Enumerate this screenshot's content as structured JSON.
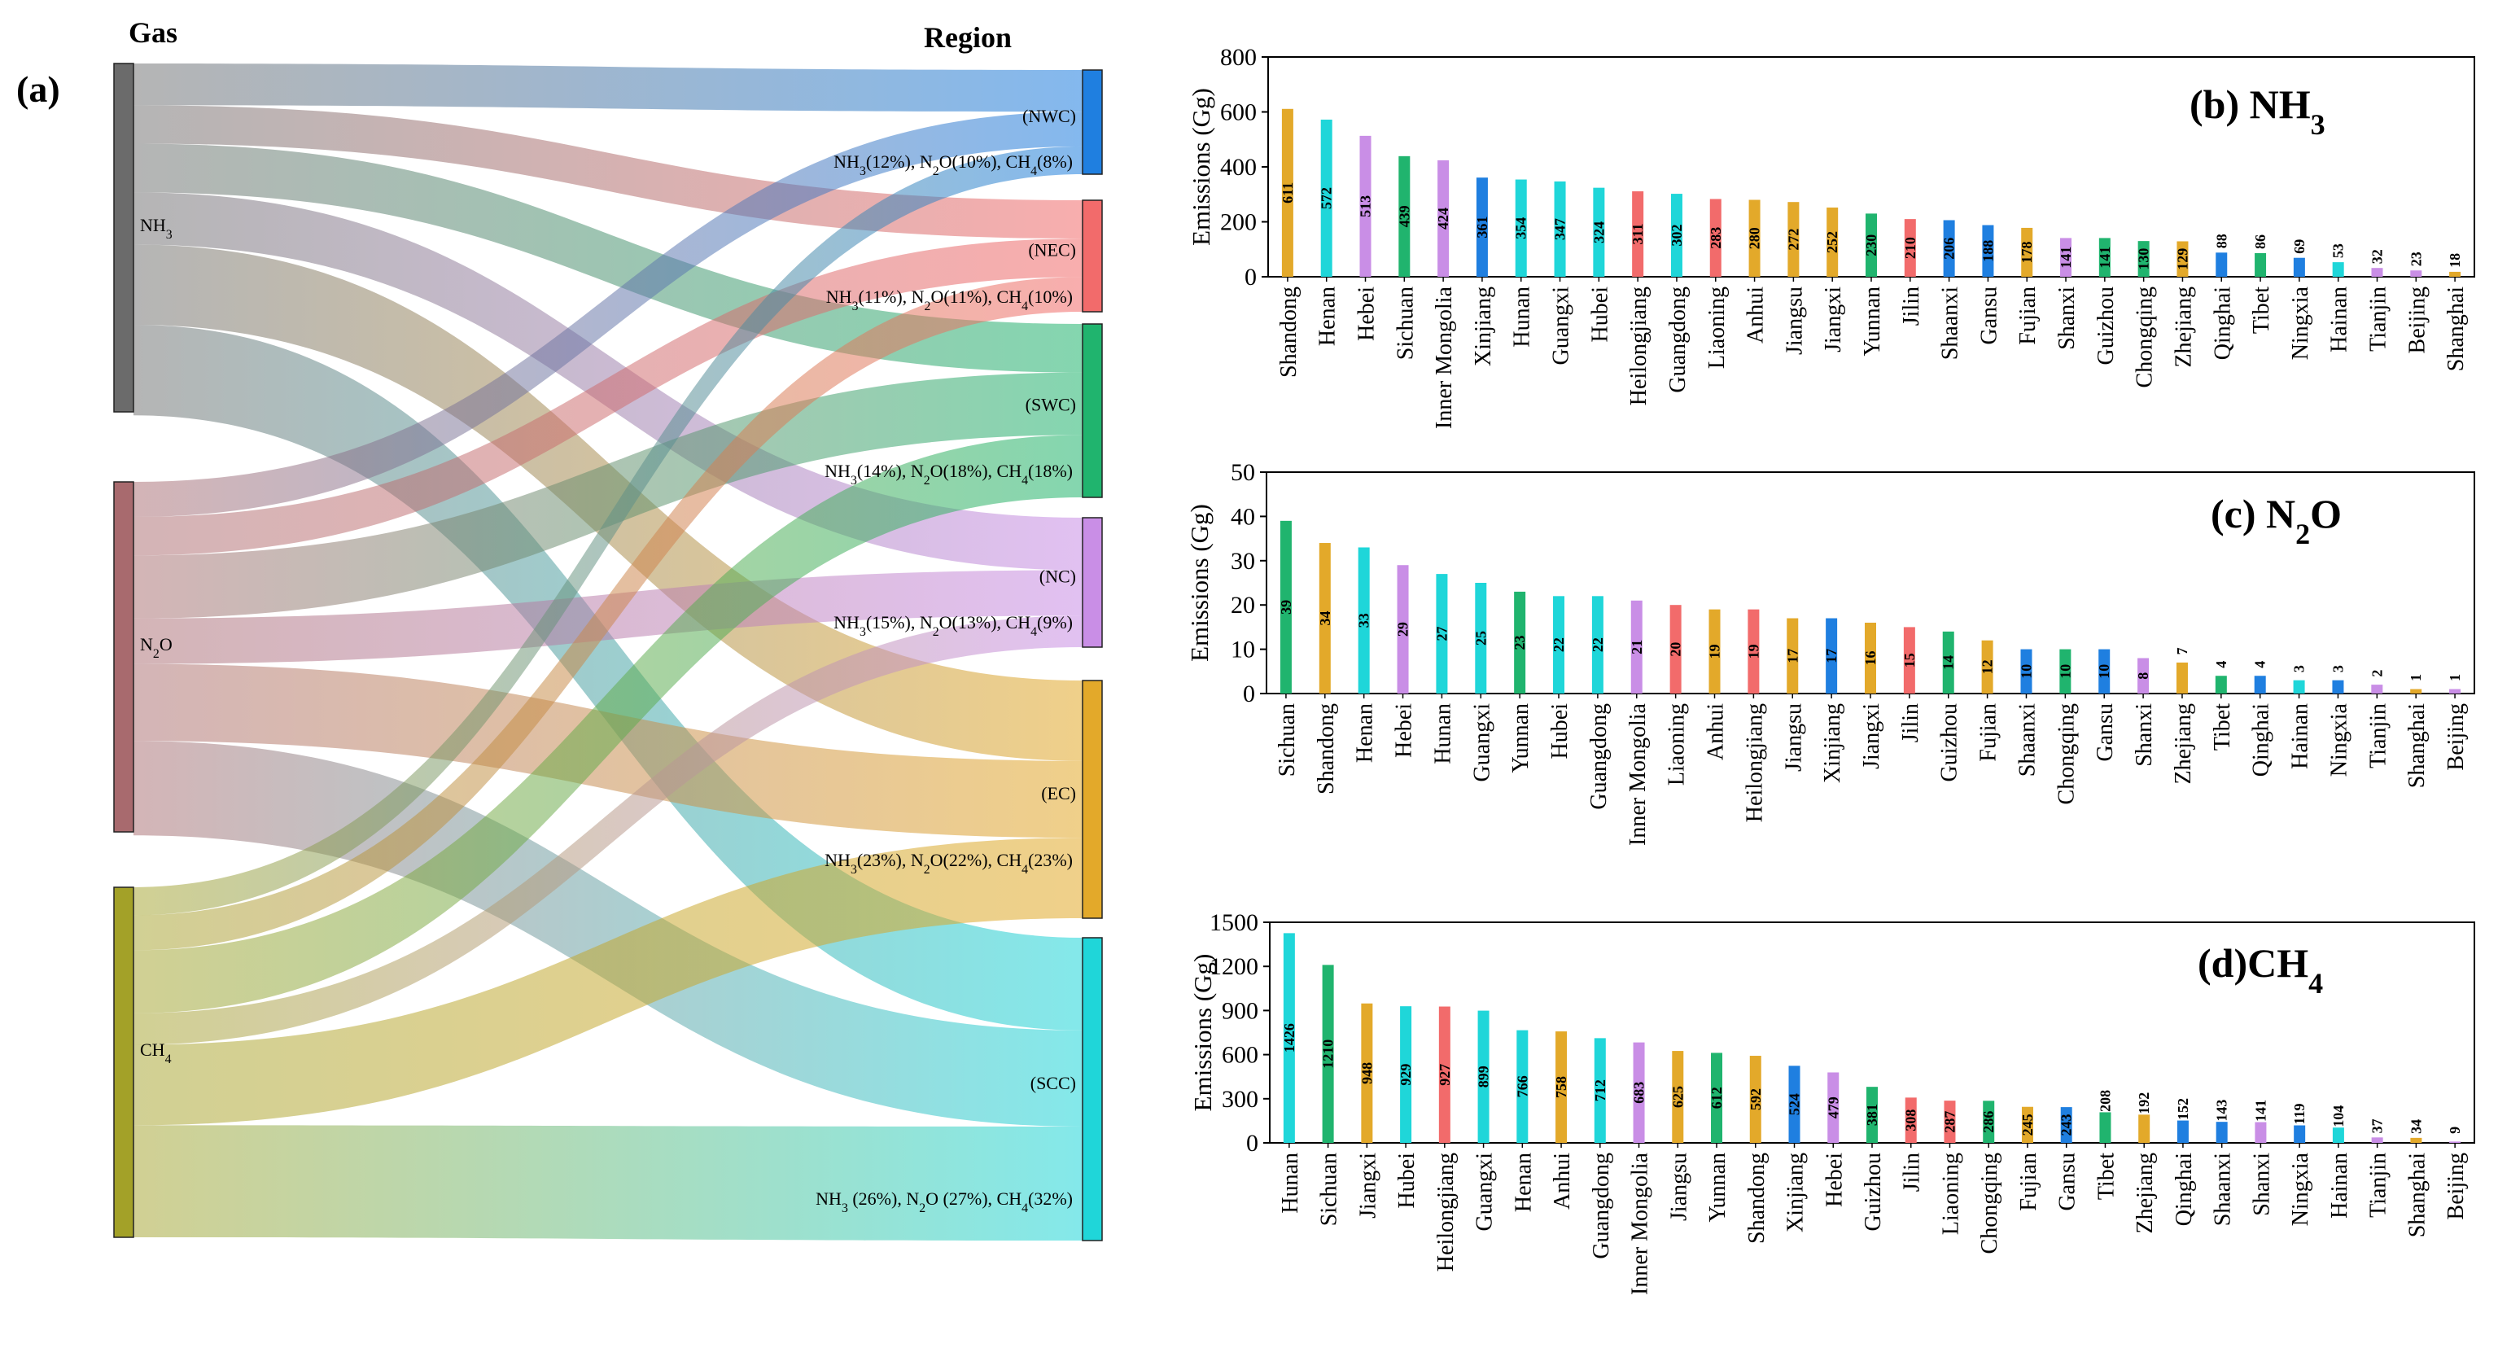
{
  "panel_a": {
    "label": "(a)",
    "gas_header": "Gas",
    "region_header": "Region",
    "gases": [
      {
        "name": "NH3",
        "color": "#6b6b6b"
      },
      {
        "name": "N2O",
        "color": "#a86a6e"
      },
      {
        "name": "CH4",
        "color": "#a3a128"
      }
    ],
    "regions": [
      {
        "code": "(NWC)",
        "color": "#1f7fe0",
        "share_text": "NH3(12%), N2O(10%), CH4(8%)"
      },
      {
        "code": "(NEC)",
        "color": "#f26b6b",
        "share_text": "NH3(11%), N2O(11%), CH4(10%)"
      },
      {
        "code": "(SWC)",
        "color": "#20b46e",
        "share_text": "NH3(14%), N2O(18%), CH4(18%)"
      },
      {
        "code": "(NC)",
        "color": "#c98ee6",
        "share_text": "NH3(15%), N2O(13%), CH4(9%)"
      },
      {
        "code": "(EC)",
        "color": "#e3a92a",
        "share_text": "NH3(23%), N2O(22%), CH4(23%)"
      },
      {
        "code": "(SCC)",
        "color": "#1fd6d9",
        "share_text": "NH3 (26%), N2O (27%), CH4(32%)"
      }
    ]
  },
  "chart_data": [
    {
      "type": "sankey",
      "title": "(a)",
      "source_label": "Gas",
      "target_label": "Region",
      "sources": [
        "NH3",
        "N2O",
        "CH4"
      ],
      "targets": [
        "(NWC)",
        "(NEC)",
        "(SWC)",
        "(NC)",
        "(EC)",
        "(SCC)"
      ],
      "shares_percent": {
        "NH3": [
          12,
          11,
          14,
          15,
          23,
          26
        ],
        "N2O": [
          10,
          11,
          18,
          13,
          22,
          27
        ],
        "CH4": [
          8,
          10,
          18,
          9,
          23,
          32
        ]
      }
    },
    {
      "type": "bar",
      "title": "(b) NH3",
      "ylabel": "Emissions (Gg)",
      "ylim": [
        0,
        800
      ],
      "yticks": [
        0,
        200,
        400,
        600,
        800
      ],
      "categories": [
        "Shandong",
        "Henan",
        "Hebei",
        "Sichuan",
        "Inner Mongolia",
        "Xinjiang",
        "Hunan",
        "Guangxi",
        "Hubei",
        "Heilongjiang",
        "Guangdong",
        "Liaoning",
        "Anhui",
        "Jiangsu",
        "Jiangxi",
        "Yunnan",
        "Jilin",
        "Shaanxi",
        "Gansu",
        "Fujian",
        "Shanxi",
        "Guizhou",
        "Chongqing",
        "Zhejiang",
        "Qinghai",
        "Tibet",
        "Ningxia",
        "Hainan",
        "Tianjin",
        "Beijing",
        "Shanghai"
      ],
      "values": [
        611,
        572,
        513,
        439,
        424,
        361,
        354,
        347,
        324,
        311,
        302,
        283,
        280,
        272,
        252,
        230,
        210,
        206,
        188,
        178,
        141,
        141,
        130,
        129,
        88,
        86,
        69,
        53,
        32,
        23,
        18
      ]
    },
    {
      "type": "bar",
      "title": "(c) N2O",
      "ylabel": "Emissions (Gg)",
      "ylim": [
        0,
        50
      ],
      "yticks": [
        0,
        10,
        20,
        30,
        40,
        50
      ],
      "categories": [
        "Sichuan",
        "Shandong",
        "Henan",
        "Hebei",
        "Hunan",
        "Guangxi",
        "Yunnan",
        "Hubei",
        "Guangdong",
        "Inner Mongolia",
        "Liaoning",
        "Anhui",
        "Heilongjiang",
        "Jiangsu",
        "Xinjiang",
        "Jiangxi",
        "Jilin",
        "Guizhou",
        "Fujian",
        "Shaanxi",
        "Chongqing",
        "Gansu",
        "Shanxi",
        "Zhejiang",
        "Tibet",
        "Qinghai",
        "Hainan",
        "Ningxia",
        "Tianjin",
        "Shanghai",
        "Beijing"
      ],
      "values": [
        39,
        34,
        33,
        29,
        27,
        25,
        23,
        22,
        22,
        21,
        20,
        19,
        19,
        17,
        17,
        16,
        15,
        14,
        12,
        10,
        10,
        10,
        8,
        7,
        4,
        4,
        3,
        3,
        2,
        1,
        1
      ]
    },
    {
      "type": "bar",
      "title": "(d)CH4",
      "ylabel": "Emissions (Gg)",
      "ylim": [
        0,
        1500
      ],
      "yticks": [
        0,
        300,
        600,
        900,
        1200,
        1500
      ],
      "categories": [
        "Hunan",
        "Sichuan",
        "Jiangxi",
        "Hubei",
        "Heilongjiang",
        "Guangxi",
        "Henan",
        "Anhui",
        "Guangdong",
        "Inner Mongolia",
        "Jiangsu",
        "Yunnan",
        "Shandong",
        "Xinjiang",
        "Hebei",
        "Guizhou",
        "Jilin",
        "Liaoning",
        "Chongqing",
        "Fujian",
        "Gansu",
        "Tibet",
        "Zhejiang",
        "Qinghai",
        "Shaanxi",
        "Shanxi",
        "Ningxia",
        "Hainan",
        "Tianjin",
        "Shanghai",
        "Beijing"
      ],
      "values": [
        1426,
        1210,
        948,
        929,
        927,
        899,
        766,
        758,
        712,
        683,
        625,
        612,
        592,
        524,
        479,
        381,
        308,
        287,
        286,
        245,
        243,
        208,
        192,
        152,
        143,
        141,
        119,
        104,
        37,
        34,
        9
      ]
    }
  ],
  "province_colors": {
    "Shandong": "#e3a92a",
    "Henan": "#1fd6d9",
    "Hebei": "#c98ee6",
    "Sichuan": "#20b46e",
    "Inner Mongolia": "#c98ee6",
    "Xinjiang": "#1f7fe0",
    "Hunan": "#1fd6d9",
    "Guangxi": "#1fd6d9",
    "Hubei": "#1fd6d9",
    "Heilongjiang": "#f26b6b",
    "Guangdong": "#1fd6d9",
    "Liaoning": "#f26b6b",
    "Anhui": "#e3a92a",
    "Jiangsu": "#e3a92a",
    "Jiangxi": "#e3a92a",
    "Yunnan": "#20b46e",
    "Jilin": "#f26b6b",
    "Shaanxi": "#1f7fe0",
    "Gansu": "#1f7fe0",
    "Fujian": "#e3a92a",
    "Shanxi": "#c98ee6",
    "Guizhou": "#20b46e",
    "Chongqing": "#20b46e",
    "Zhejiang": "#e3a92a",
    "Qinghai": "#1f7fe0",
    "Tibet": "#20b46e",
    "Ningxia": "#1f7fe0",
    "Hainan": "#1fd6d9",
    "Tianjin": "#c98ee6",
    "Beijing": "#c98ee6",
    "Shanghai": "#e3a92a"
  },
  "title_colors": {
    "b": "#8c8c8c",
    "c": "#a86a6e",
    "d": "#a3a128"
  }
}
